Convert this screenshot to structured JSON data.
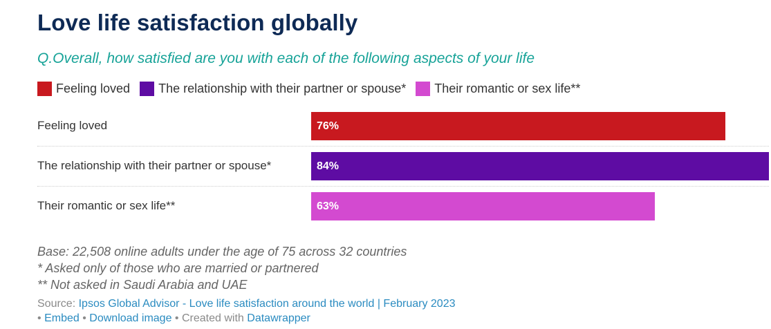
{
  "chart_data": {
    "type": "bar",
    "orientation": "horizontal",
    "title": "Love life satisfaction globally",
    "subtitle": "Q.Overall, how satisfied are you with each of the following aspects of your life",
    "categories": [
      "Feeling loved",
      "The relationship with their partner or spouse*",
      "Their romantic or sex life**"
    ],
    "values": [
      76,
      84,
      63
    ],
    "value_labels": [
      "76%",
      "84%",
      "63%"
    ],
    "colors": [
      "#c8191f",
      "#5e0ca3",
      "#d34ad0"
    ],
    "xlim": [
      0,
      84
    ],
    "legend": {
      "placement": "top-left",
      "entries": [
        {
          "label": "Feeling loved",
          "color": "#c8191f"
        },
        {
          "label": "The relationship with their partner or spouse*",
          "color": "#5e0ca3"
        },
        {
          "label": "Their romantic or sex life**",
          "color": "#d34ad0"
        }
      ]
    },
    "grid": false
  },
  "notes": [
    "Base: 22,508 online adults under the age of 75 across 32 countries",
    "* Asked only of those who are married or partnered",
    "** Not asked in Saudi Arabia and UAE"
  ],
  "footer": {
    "source_prefix": "Source: ",
    "source_link": "Ipsos Global Advisor - Love life satisfaction around the world | February 2023",
    "bullet": "•",
    "embed": "Embed",
    "download": "Download image",
    "created_with": "Created with",
    "datawrapper": "Datawrapper"
  }
}
